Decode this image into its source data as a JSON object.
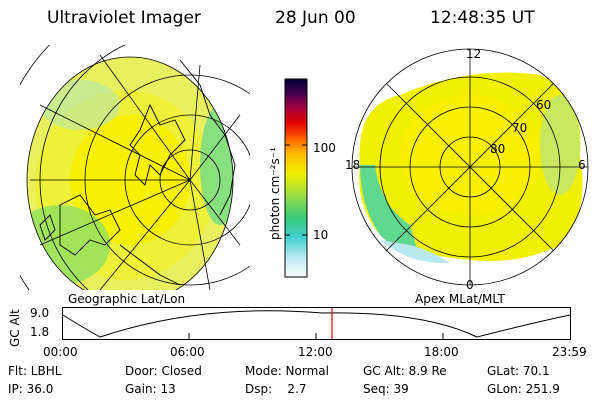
{
  "header": {
    "instrument": "Ultraviolet Imager",
    "date": "28 Jun 00",
    "time": "12:48:35 UT"
  },
  "left_map": {
    "caption": "Geographic Lat/Lon"
  },
  "right_map": {
    "caption": "Apex MLat/MLT",
    "mlt_labels": [
      "12",
      "18",
      "6",
      "0"
    ],
    "mlat_labels": [
      "60",
      "70",
      "80"
    ]
  },
  "colorbar": {
    "unit_label": "photon cm⁻²s⁻¹",
    "ticks": [
      "100",
      "10"
    ]
  },
  "altitude_plot": {
    "y_label": "GC Alt",
    "y_ticks": [
      "9.0",
      "1.8"
    ],
    "x_ticks": [
      "00:00",
      "06:00",
      "12:00",
      "18:00",
      "23:59"
    ]
  },
  "info": {
    "row1": [
      {
        "key": "flt",
        "text": "Flt: LBHL"
      },
      {
        "key": "door",
        "text": "Door: Closed"
      },
      {
        "key": "mode",
        "text": "Mode: Normal"
      },
      {
        "key": "gcalt",
        "text": "GC Alt: 8.9 Re"
      },
      {
        "key": "glat",
        "text": "GLat: 70.1"
      }
    ],
    "row2": [
      {
        "key": "ip",
        "text": "IP: 36.0"
      },
      {
        "key": "gain",
        "text": "Gain: 13"
      },
      {
        "key": "dsp",
        "text": "Dsp:    2.7"
      },
      {
        "key": "seq",
        "text": "Seq: 39"
      },
      {
        "key": "glon",
        "text": "GLon: 251.9"
      }
    ]
  },
  "colors": {
    "colorbar_stops": [
      "#ffffff",
      "#b8e8f0",
      "#40d0d0",
      "#38c878",
      "#a0e040",
      "#f0f000",
      "#ffc000",
      "#ff6000",
      "#e00000",
      "#a00040",
      "#400050",
      "#000030"
    ],
    "current_time_marker": "#e00000"
  }
}
